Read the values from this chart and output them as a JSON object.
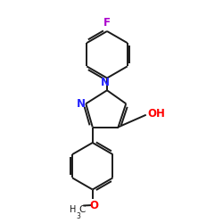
{
  "background_color": "#ffffff",
  "atom_colors": {
    "C": "#1a1a1a",
    "N": "#2222ff",
    "O": "#ff0000",
    "F": "#aa00cc",
    "H": "#1a1a1a"
  },
  "bond_color": "#1a1a1a",
  "bond_lw": 1.4,
  "font_size_atom": 8.5,
  "font_size_small": 7.5
}
